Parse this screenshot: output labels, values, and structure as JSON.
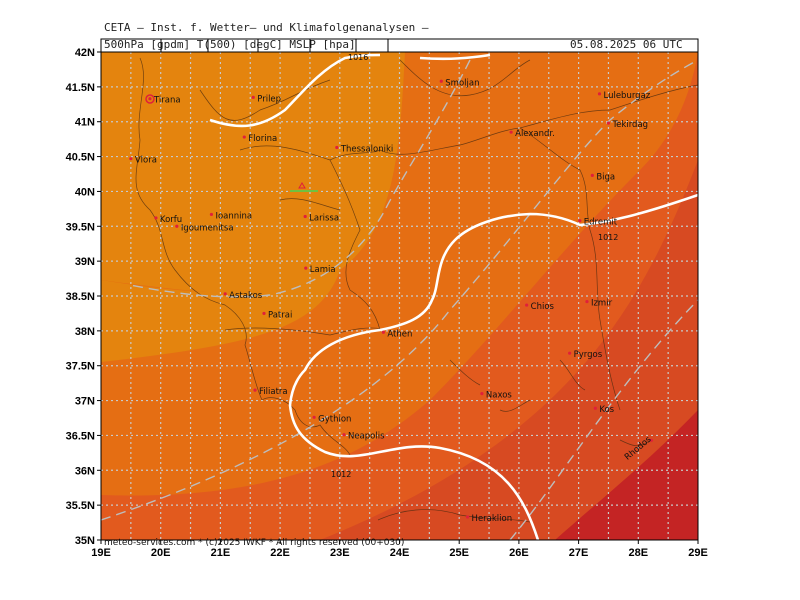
{
  "header": {
    "org": "CETA — Inst. f. Wetter— und Klimafolgenanalysen —",
    "product": "500hPa [gpdm] T(500) [degC] MSLP [hpa]",
    "datetime": "05.08.2025 06 UTC"
  },
  "footer": "meteo-services.com * (c)2025 IWKF * All rights reserved (00+030)",
  "axes": {
    "lon_labels": [
      "19E",
      "20E",
      "21E",
      "22E",
      "23E",
      "24E",
      "25E",
      "26E",
      "27E",
      "28E",
      "29E"
    ],
    "lat_labels": [
      "42N",
      "41.5N",
      "41N",
      "40.5N",
      "40N",
      "39.5N",
      "39N",
      "38.5N",
      "38N",
      "37.5N",
      "37N",
      "36.5N",
      "36N",
      "35.5N",
      "35N"
    ]
  },
  "colors": {
    "band_light": "#e4840e",
    "band_mid": "#e56e13",
    "band_dark": "#e25a1e",
    "band_darker": "#d74a22",
    "band_deep": "#c42424",
    "isoline": "#ffffff",
    "grid": "#c9c9c9"
  },
  "isoline_labels": [
    "1016",
    "1012",
    "1012"
  ],
  "cities": [
    {
      "name": "Tirana",
      "lon": 19.82,
      "lat": 41.33
    },
    {
      "name": "Prilep",
      "lon": 21.55,
      "lat": 41.35
    },
    {
      "name": "Smoljan",
      "lon": 24.7,
      "lat": 41.58
    },
    {
      "name": "Luleburgaz",
      "lon": 27.35,
      "lat": 41.4
    },
    {
      "name": "Tekirdag",
      "lon": 27.5,
      "lat": 40.98
    },
    {
      "name": "Alexandr.",
      "lon": 25.87,
      "lat": 40.85
    },
    {
      "name": "Florina",
      "lon": 21.4,
      "lat": 40.78
    },
    {
      "name": "Thessaloniki",
      "lon": 22.95,
      "lat": 40.63
    },
    {
      "name": "Vlora",
      "lon": 19.5,
      "lat": 40.47
    },
    {
      "name": "Biga",
      "lon": 27.23,
      "lat": 40.23
    },
    {
      "name": "Korfu",
      "lon": 19.92,
      "lat": 39.62
    },
    {
      "name": "Ioannina",
      "lon": 20.85,
      "lat": 39.67
    },
    {
      "name": "Larissa",
      "lon": 22.42,
      "lat": 39.64
    },
    {
      "name": "Edremit",
      "lon": 27.02,
      "lat": 39.58
    },
    {
      "name": "Igoumenitsa",
      "lon": 20.27,
      "lat": 39.5
    },
    {
      "name": "Lamia",
      "lon": 22.43,
      "lat": 38.9
    },
    {
      "name": "Astakos",
      "lon": 21.08,
      "lat": 38.53
    },
    {
      "name": "Chios",
      "lon": 26.13,
      "lat": 38.37
    },
    {
      "name": "Izmir",
      "lon": 27.14,
      "lat": 38.42
    },
    {
      "name": "Patrai",
      "lon": 21.73,
      "lat": 38.25
    },
    {
      "name": "Athen",
      "lon": 23.73,
      "lat": 37.98
    },
    {
      "name": "Pyrgos",
      "lon": 26.85,
      "lat": 37.68
    },
    {
      "name": "Filiatra",
      "lon": 21.58,
      "lat": 37.15
    },
    {
      "name": "Naxos",
      "lon": 25.38,
      "lat": 37.1
    },
    {
      "name": "Gythion",
      "lon": 22.57,
      "lat": 36.76
    },
    {
      "name": "Kos",
      "lon": 27.28,
      "lat": 36.89
    },
    {
      "name": "Neapolis",
      "lon": 23.07,
      "lat": 36.51
    },
    {
      "name": "Rhodos",
      "lon": 28.22,
      "lat": 36.43
    },
    {
      "name": "Heraklion",
      "lon": 25.14,
      "lat": 35.33
    }
  ]
}
